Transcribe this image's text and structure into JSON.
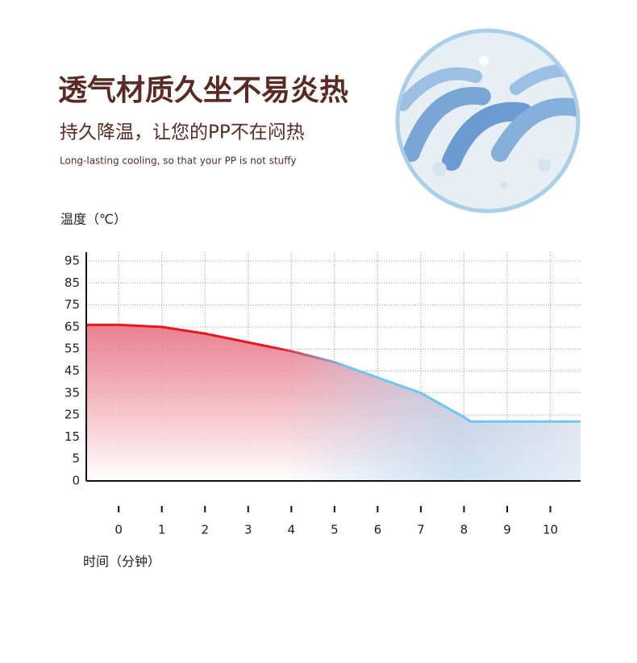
{
  "chart_data": {
    "type": "line",
    "title": "透气材质久坐不易炎热",
    "subtitle": "持久降温，让您的PP不在闷热",
    "caption": "Long-lasting cooling, so that your PP is not stuffy",
    "y_label": "温度（℃）",
    "x_label": "时间（分钟）",
    "x": [
      -0.75,
      0,
      1,
      2,
      3,
      4,
      5,
      6,
      7,
      8,
      8.15,
      9,
      10,
      10.7
    ],
    "values": [
      66,
      66,
      65,
      62,
      58,
      54,
      49,
      42,
      35,
      24,
      22,
      22,
      22,
      22
    ],
    "line_colors": [
      "#e8161e",
      "#6cc8f0"
    ],
    "xlim": [
      -0.75,
      10.7
    ],
    "xticks": [
      0,
      1,
      2,
      3,
      4,
      5,
      6,
      7,
      8,
      9,
      10
    ],
    "ylim": [
      0,
      95
    ],
    "yticks": [
      0,
      5,
      15,
      25,
      35,
      45,
      55,
      65,
      75,
      85,
      95
    ],
    "grid": true
  }
}
